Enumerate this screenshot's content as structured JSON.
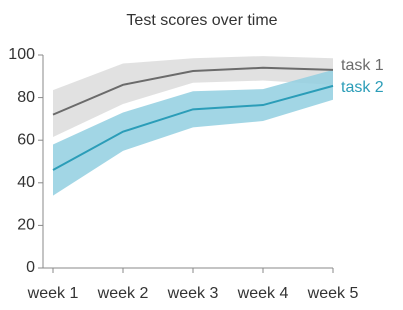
{
  "chart_data": {
    "type": "line",
    "title": "Test scores over time",
    "categories": [
      "week 1",
      "week 2",
      "week 3",
      "week 4",
      "week 5"
    ],
    "series": [
      {
        "name": "task 1",
        "color": "#6b6b6b",
        "band_color": "#dcdcdc",
        "values": [
          72,
          86,
          92.5,
          94,
          93
        ],
        "lower": [
          61.5,
          77,
          87,
          88,
          86
        ],
        "upper": [
          83.5,
          96,
          98.5,
          99.5,
          98.5
        ]
      },
      {
        "name": "task 2",
        "color": "#2b9db8",
        "band_color": "#92cfe0",
        "values": [
          46,
          64,
          74.5,
          76.5,
          85.5
        ],
        "lower": [
          34,
          55,
          66,
          69,
          79
        ],
        "upper": [
          58,
          73,
          83,
          84,
          93
        ]
      }
    ],
    "ylim": [
      0,
      100
    ],
    "yticks": [
      0,
      20,
      40,
      60,
      80,
      100
    ],
    "grid": false
  }
}
